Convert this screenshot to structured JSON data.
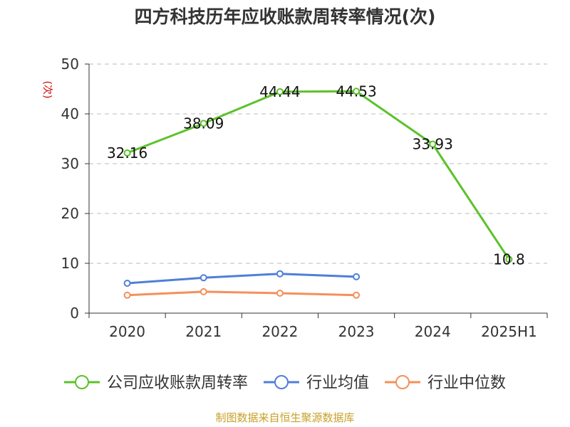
{
  "chart_data": {
    "type": "line",
    "title": "四方科技历年应收账款周转率情况(次)",
    "ylabel": "(次)",
    "ylim": [
      0,
      50
    ],
    "yticks": [
      0,
      10,
      20,
      30,
      40,
      50
    ],
    "categories": [
      "2020",
      "2021",
      "2022",
      "2023",
      "2024",
      "2025H1"
    ],
    "grid": true,
    "legend_position": "bottom",
    "series": [
      {
        "name": "公司应收账款周转率",
        "color": "#5bc22a",
        "values": [
          32.16,
          38.09,
          44.44,
          44.53,
          33.93,
          10.8
        ],
        "labels": [
          "32.16",
          "38.09",
          "44.44",
          "44.53",
          "33.93",
          "10.8"
        ]
      },
      {
        "name": "行业均值",
        "color": "#4f7fd8",
        "values": [
          6.0,
          7.1,
          7.9,
          7.3,
          null,
          null
        ]
      },
      {
        "name": "行业中位数",
        "color": "#f4905a",
        "values": [
          3.6,
          4.3,
          4.0,
          3.6,
          null,
          null
        ]
      }
    ]
  },
  "source": "制图数据来自恒生聚源数据库"
}
